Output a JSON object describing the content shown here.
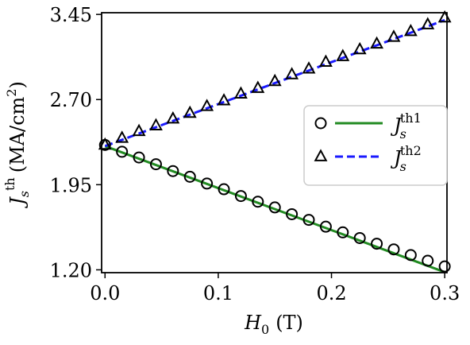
{
  "chart_data": {
    "type": "line",
    "xlabel": {
      "symbol": "H",
      "sub": "0",
      "unit": "(T)"
    },
    "ylabel": {
      "symbol": "J",
      "sub": "s",
      "sup": "th",
      "unit_main": "(MA/cm",
      "unit_sup": "2",
      "unit_close": ")"
    },
    "xlim": [
      -0.003,
      0.302
    ],
    "ylim": [
      1.175,
      3.465
    ],
    "x_ticks": [
      0.0,
      0.1,
      0.2,
      0.3
    ],
    "x_tick_labels": [
      "0.0",
      "0.1",
      "0.2",
      "0.3"
    ],
    "y_ticks": [
      1.2,
      1.95,
      2.7,
      3.45
    ],
    "y_tick_labels": [
      "1.20",
      "1.95",
      "2.70",
      "3.45"
    ],
    "grid": false,
    "legend_position": "center-right",
    "series": [
      {
        "name": "Jth1 markers",
        "style": "markers",
        "marker": "circle",
        "color": "#000000",
        "x": [
          0.0,
          0.015,
          0.03,
          0.045,
          0.06,
          0.075,
          0.09,
          0.105,
          0.12,
          0.135,
          0.15,
          0.165,
          0.18,
          0.195,
          0.21,
          0.225,
          0.24,
          0.255,
          0.27,
          0.285,
          0.3
        ],
        "y": [
          2.3,
          2.24,
          2.19,
          2.13,
          2.07,
          2.02,
          1.96,
          1.91,
          1.85,
          1.8,
          1.75,
          1.69,
          1.64,
          1.58,
          1.53,
          1.48,
          1.43,
          1.38,
          1.33,
          1.28,
          1.23
        ]
      },
      {
        "name": "Jth1 line",
        "style": "line",
        "dash": "solid",
        "color": "#228b22",
        "x": [
          0.0,
          0.3
        ],
        "y": [
          2.29,
          1.18
        ]
      },
      {
        "name": "Jth2 markers",
        "style": "markers",
        "marker": "triangle",
        "color": "#000000",
        "x": [
          0.0,
          0.015,
          0.03,
          0.045,
          0.06,
          0.075,
          0.09,
          0.105,
          0.12,
          0.135,
          0.15,
          0.165,
          0.18,
          0.195,
          0.21,
          0.225,
          0.24,
          0.255,
          0.27,
          0.285,
          0.3
        ],
        "y": [
          2.3,
          2.36,
          2.42,
          2.47,
          2.53,
          2.58,
          2.64,
          2.69,
          2.75,
          2.8,
          2.86,
          2.92,
          2.97,
          3.03,
          3.08,
          3.14,
          3.19,
          3.25,
          3.3,
          3.36,
          3.42
        ]
      },
      {
        "name": "Jth2 line",
        "style": "line",
        "dash": "dashed",
        "color": "#1a1aff",
        "x": [
          0.0,
          0.3
        ],
        "y": [
          2.29,
          3.4
        ]
      }
    ],
    "legend": [
      {
        "marker": "circle",
        "line_color": "#228b22",
        "dash": "solid",
        "symbol": "J",
        "sub": "s",
        "sup": "th1"
      },
      {
        "marker": "triangle",
        "line_color": "#1a1aff",
        "dash": "dashed",
        "symbol": "J",
        "sub": "s",
        "sup": "th2"
      }
    ]
  }
}
